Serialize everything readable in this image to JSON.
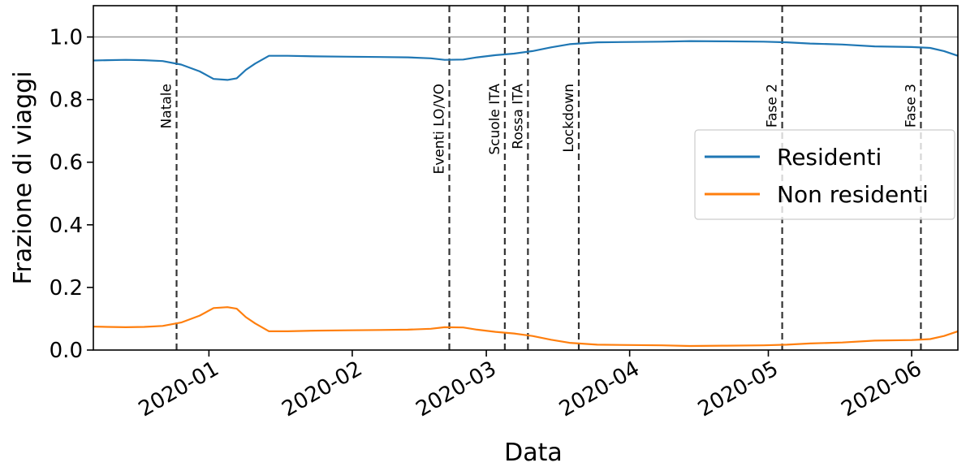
{
  "chart_data": {
    "type": "line",
    "title": "",
    "xlabel": "Data",
    "ylabel": "Frazione di viaggi",
    "ylim": [
      0.0,
      1.1
    ],
    "xlim": [
      "2019-12-07",
      "2020-06-11"
    ],
    "grid": false,
    "legend_placement": "center-right",
    "y_ticks": [
      "0.0",
      "0.2",
      "0.4",
      "0.6",
      "0.8",
      "1.0"
    ],
    "x_ticks": [
      {
        "date": "2020-01-01",
        "label": "2020-01"
      },
      {
        "date": "2020-02-01",
        "label": "2020-02"
      },
      {
        "date": "2020-03-01",
        "label": "2020-03"
      },
      {
        "date": "2020-04-01",
        "label": "2020-04"
      },
      {
        "date": "2020-05-01",
        "label": "2020-05"
      },
      {
        "date": "2020-06-01",
        "label": "2020-06"
      }
    ],
    "reference_line": {
      "y": 1.0,
      "color": "#999999"
    },
    "events": [
      {
        "label": "Natale",
        "date": "2019-12-25"
      },
      {
        "label": "Eventi LO/VO",
        "date": "2020-02-22"
      },
      {
        "label": "Scuole ITA",
        "date": "2020-03-05"
      },
      {
        "label": "Rossa ITA",
        "date": "2020-03-10"
      },
      {
        "label": "Lockdown",
        "date": "2020-03-21"
      },
      {
        "label": "Fase 2",
        "date": "2020-05-04"
      },
      {
        "label": "Fase 3",
        "date": "2020-06-03"
      }
    ],
    "series": [
      {
        "name": "Residenti",
        "color": "#1f77b4",
        "points": [
          [
            "2019-12-07",
            0.925
          ],
          [
            "2019-12-10",
            0.926
          ],
          [
            "2019-12-14",
            0.927
          ],
          [
            "2019-12-18",
            0.926
          ],
          [
            "2019-12-22",
            0.923
          ],
          [
            "2019-12-26",
            0.912
          ],
          [
            "2019-12-30",
            0.89
          ],
          [
            "2020-01-02",
            0.866
          ],
          [
            "2020-01-05",
            0.863
          ],
          [
            "2020-01-07",
            0.868
          ],
          [
            "2020-01-09",
            0.895
          ],
          [
            "2020-01-11",
            0.915
          ],
          [
            "2020-01-14",
            0.94
          ],
          [
            "2020-01-18",
            0.94
          ],
          [
            "2020-01-24",
            0.938
          ],
          [
            "2020-01-31",
            0.937
          ],
          [
            "2020-02-07",
            0.936
          ],
          [
            "2020-02-13",
            0.935
          ],
          [
            "2020-02-18",
            0.932
          ],
          [
            "2020-02-21",
            0.927
          ],
          [
            "2020-02-25",
            0.928
          ],
          [
            "2020-02-28",
            0.935
          ],
          [
            "2020-03-03",
            0.942
          ],
          [
            "2020-03-07",
            0.947
          ],
          [
            "2020-03-11",
            0.955
          ],
          [
            "2020-03-15",
            0.967
          ],
          [
            "2020-03-19",
            0.977
          ],
          [
            "2020-03-25",
            0.983
          ],
          [
            "2020-04-01",
            0.984
          ],
          [
            "2020-04-08",
            0.985
          ],
          [
            "2020-04-14",
            0.987
          ],
          [
            "2020-04-22",
            0.986
          ],
          [
            "2020-04-30",
            0.985
          ],
          [
            "2020-05-05",
            0.983
          ],
          [
            "2020-05-10",
            0.979
          ],
          [
            "2020-05-17",
            0.976
          ],
          [
            "2020-05-24",
            0.97
          ],
          [
            "2020-06-01",
            0.968
          ],
          [
            "2020-06-05",
            0.965
          ],
          [
            "2020-06-08",
            0.955
          ],
          [
            "2020-06-11",
            0.94
          ]
        ]
      },
      {
        "name": "Non residenti",
        "color": "#ff7f0e",
        "points": [
          [
            "2019-12-07",
            0.075
          ],
          [
            "2019-12-10",
            0.074
          ],
          [
            "2019-12-14",
            0.073
          ],
          [
            "2019-12-18",
            0.074
          ],
          [
            "2019-12-22",
            0.077
          ],
          [
            "2019-12-26",
            0.088
          ],
          [
            "2019-12-30",
            0.11
          ],
          [
            "2020-01-02",
            0.134
          ],
          [
            "2020-01-05",
            0.137
          ],
          [
            "2020-01-07",
            0.132
          ],
          [
            "2020-01-09",
            0.105
          ],
          [
            "2020-01-11",
            0.085
          ],
          [
            "2020-01-14",
            0.06
          ],
          [
            "2020-01-18",
            0.06
          ],
          [
            "2020-01-24",
            0.062
          ],
          [
            "2020-01-31",
            0.063
          ],
          [
            "2020-02-07",
            0.064
          ],
          [
            "2020-02-13",
            0.065
          ],
          [
            "2020-02-18",
            0.068
          ],
          [
            "2020-02-21",
            0.073
          ],
          [
            "2020-02-25",
            0.072
          ],
          [
            "2020-02-28",
            0.065
          ],
          [
            "2020-03-03",
            0.058
          ],
          [
            "2020-03-07",
            0.053
          ],
          [
            "2020-03-11",
            0.045
          ],
          [
            "2020-03-15",
            0.033
          ],
          [
            "2020-03-19",
            0.023
          ],
          [
            "2020-03-25",
            0.017
          ],
          [
            "2020-04-01",
            0.016
          ],
          [
            "2020-04-08",
            0.015
          ],
          [
            "2020-04-14",
            0.013
          ],
          [
            "2020-04-22",
            0.014
          ],
          [
            "2020-04-30",
            0.015
          ],
          [
            "2020-05-05",
            0.017
          ],
          [
            "2020-05-10",
            0.021
          ],
          [
            "2020-05-17",
            0.024
          ],
          [
            "2020-05-24",
            0.03
          ],
          [
            "2020-06-01",
            0.032
          ],
          [
            "2020-06-05",
            0.035
          ],
          [
            "2020-06-08",
            0.045
          ],
          [
            "2020-06-11",
            0.06
          ]
        ]
      }
    ]
  }
}
